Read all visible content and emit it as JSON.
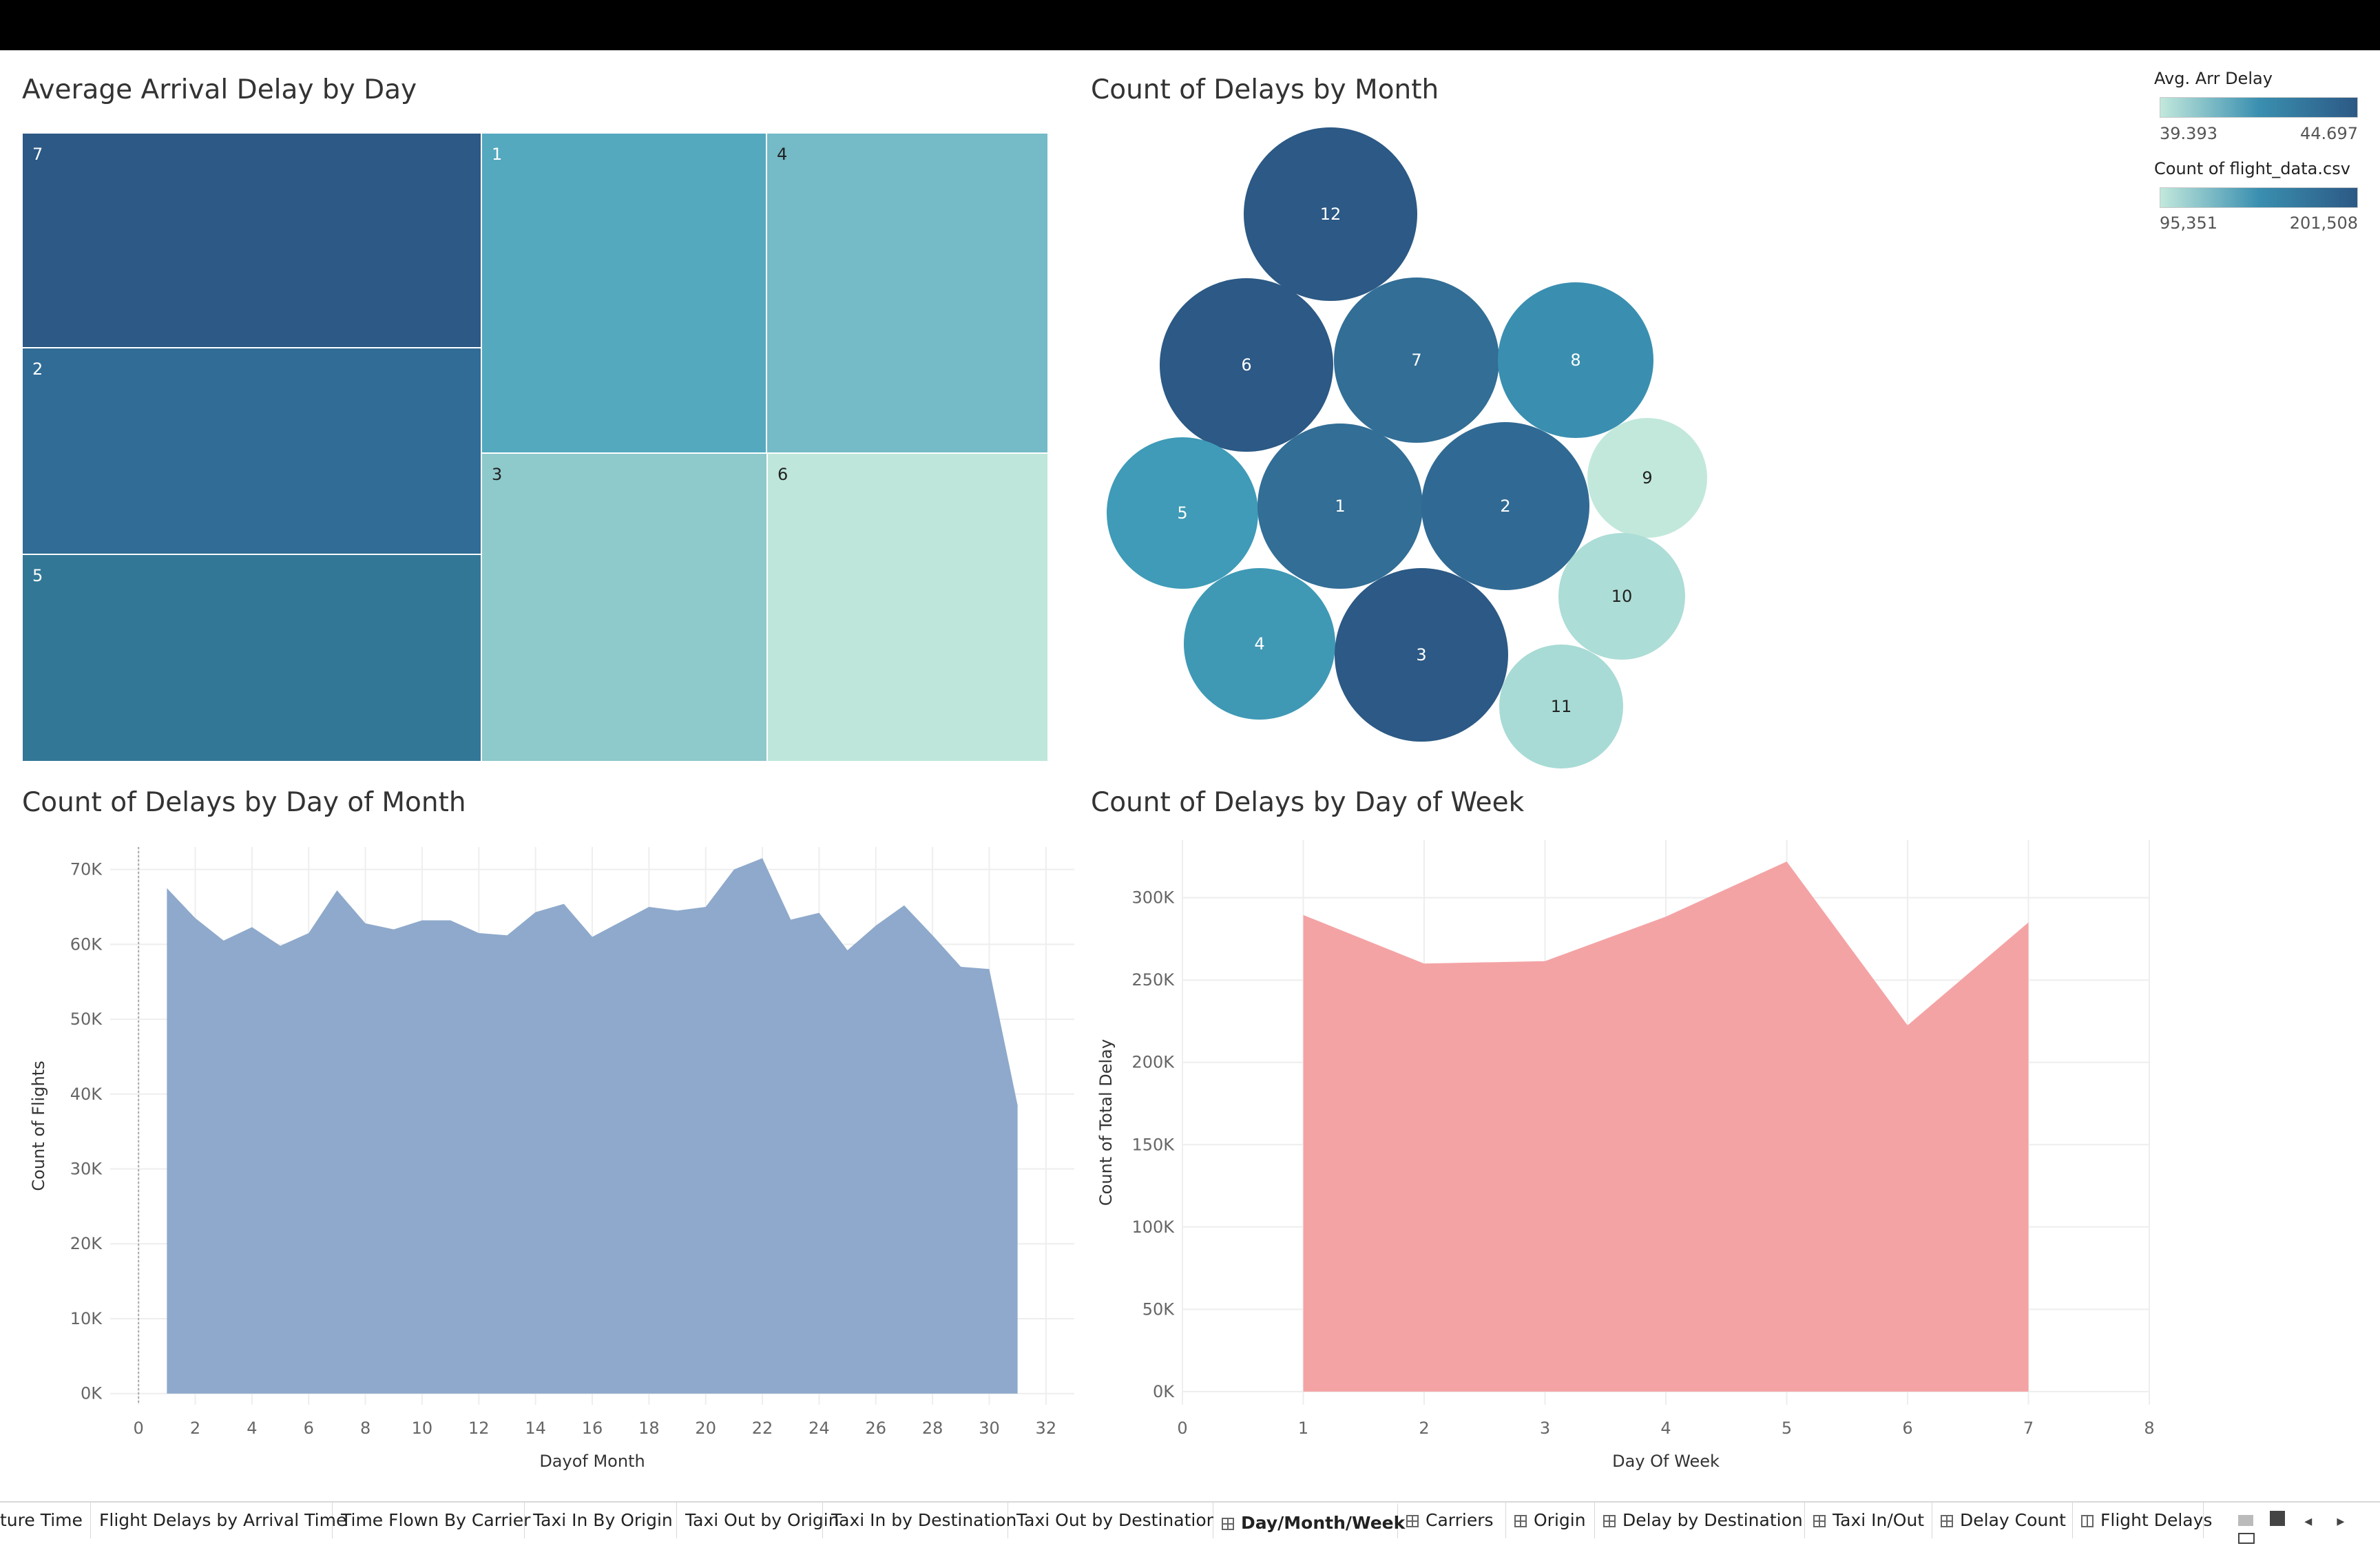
{
  "colors": {
    "dark": "#2c5985",
    "mid": "#3a8fb0",
    "light": "#c2e8dc",
    "area_blue": "#8ea9cb",
    "area_red": "#f4a3a5"
  },
  "treemap": {
    "title": "Average Arrival Delay by Day",
    "cells": [
      {
        "label": "7",
        "color": "#2c5985",
        "avg_arr_delay": 44.697
      },
      {
        "label": "2",
        "color": "#306c96",
        "avg_arr_delay": 44.0
      },
      {
        "label": "5",
        "color": "#337797",
        "avg_arr_delay": 43.6
      },
      {
        "label": "1",
        "color": "#54a9bf",
        "avg_arr_delay": 42.2
      },
      {
        "label": "4",
        "color": "#74bac7",
        "avg_arr_delay": 41.4
      },
      {
        "label": "3",
        "color": "#8ec9cc",
        "avg_arr_delay": 40.6
      },
      {
        "label": "6",
        "color": "#bfe6db",
        "avg_arr_delay": 39.393
      }
    ]
  },
  "bubbles": {
    "title": "Count of Delays by Month",
    "items": [
      {
        "label": "12",
        "color": "#2c5985",
        "count": 182000
      },
      {
        "label": "6",
        "color": "#2c5985",
        "count": 201508
      },
      {
        "label": "7",
        "color": "#326e96",
        "count": 178000
      },
      {
        "label": "8",
        "color": "#3a8fb0",
        "count": 160000
      },
      {
        "label": "5",
        "color": "#3f9bb7",
        "count": 156000
      },
      {
        "label": "1",
        "color": "#326e96",
        "count": 181000
      },
      {
        "label": "2",
        "color": "#306a94",
        "count": 188000
      },
      {
        "label": "9",
        "color": "#c2e8dc",
        "count": 102000
      },
      {
        "label": "4",
        "color": "#3f99b5",
        "count": 155000
      },
      {
        "label": "3",
        "color": "#2c5985",
        "count": 200000
      },
      {
        "label": "10",
        "color": "#acddd6",
        "count": 110000
      },
      {
        "label": "11",
        "color": "#a8dbd5",
        "count": 95351
      }
    ]
  },
  "legend": {
    "avg": {
      "title": "Avg. Arr Delay",
      "min": "39.393",
      "max": "44.697"
    },
    "count": {
      "title": "Count of flight_data.csv",
      "min": "95,351",
      "max": "201,508"
    }
  },
  "chart_data": [
    {
      "type": "area",
      "title": "Count of Delays by Day of Month",
      "xlabel": "Dayof Month",
      "ylabel": "Count of Flights",
      "xlim": [
        -1,
        33
      ],
      "ylim": [
        -1500,
        73000
      ],
      "xticks": [
        "0",
        "2",
        "4",
        "6",
        "8",
        "10",
        "12",
        "14",
        "16",
        "18",
        "20",
        "22",
        "24",
        "26",
        "28",
        "30",
        "32"
      ],
      "yticks": [
        "0K",
        "10K",
        "20K",
        "30K",
        "40K",
        "50K",
        "60K",
        "70K"
      ],
      "grid": true,
      "x": [
        1,
        2,
        3,
        4,
        5,
        6,
        7,
        8,
        9,
        10,
        11,
        12,
        13,
        14,
        15,
        16,
        17,
        18,
        19,
        20,
        21,
        22,
        23,
        24,
        25,
        26,
        27,
        28,
        29,
        30,
        31
      ],
      "values": [
        67500,
        63500,
        60500,
        62300,
        59800,
        61500,
        67200,
        62800,
        62000,
        63200,
        63200,
        61500,
        61200,
        64300,
        65400,
        61000,
        63000,
        65000,
        64500,
        65000,
        70000,
        71500,
        63300,
        64200,
        59200,
        62500,
        65200,
        61200,
        57000,
        56700,
        38500
      ]
    },
    {
      "type": "area",
      "title": "Count of Delays by Day of Week",
      "xlabel": "Day Of Week",
      "ylabel": "Count of Total Delay",
      "xlim": [
        0,
        8
      ],
      "ylim": [
        -8000,
        335000
      ],
      "xticks": [
        "0",
        "1",
        "2",
        "3",
        "4",
        "5",
        "6",
        "7",
        "8"
      ],
      "yticks": [
        "0K",
        "50K",
        "100K",
        "150K",
        "200K",
        "250K",
        "300K"
      ],
      "grid": true,
      "x": [
        1,
        2,
        3,
        4,
        5,
        6,
        7
      ],
      "values": [
        289500,
        260000,
        261500,
        288500,
        322000,
        222500,
        285000
      ]
    }
  ],
  "tabs": [
    {
      "label": "ture Time",
      "icon": "none"
    },
    {
      "label": "Flight Delays by Arrival Time",
      "icon": "none"
    },
    {
      "label": "Time Flown By Carrier",
      "icon": "none"
    },
    {
      "label": "Taxi In By Origin",
      "icon": "none"
    },
    {
      "label": "Taxi Out by Origin",
      "icon": "none"
    },
    {
      "label": "Taxi In by Destination",
      "icon": "none"
    },
    {
      "label": "Taxi Out by Destination",
      "icon": "none"
    },
    {
      "label": "Day/Month/Week",
      "icon": "dashboard",
      "active": true
    },
    {
      "label": "Carriers",
      "icon": "dashboard"
    },
    {
      "label": "Origin",
      "icon": "dashboard"
    },
    {
      "label": "Delay by Destination",
      "icon": "dashboard"
    },
    {
      "label": "Taxi In/Out",
      "icon": "dashboard"
    },
    {
      "label": "Delay Count",
      "icon": "dashboard"
    },
    {
      "label": "Flight Delays",
      "icon": "story"
    }
  ]
}
